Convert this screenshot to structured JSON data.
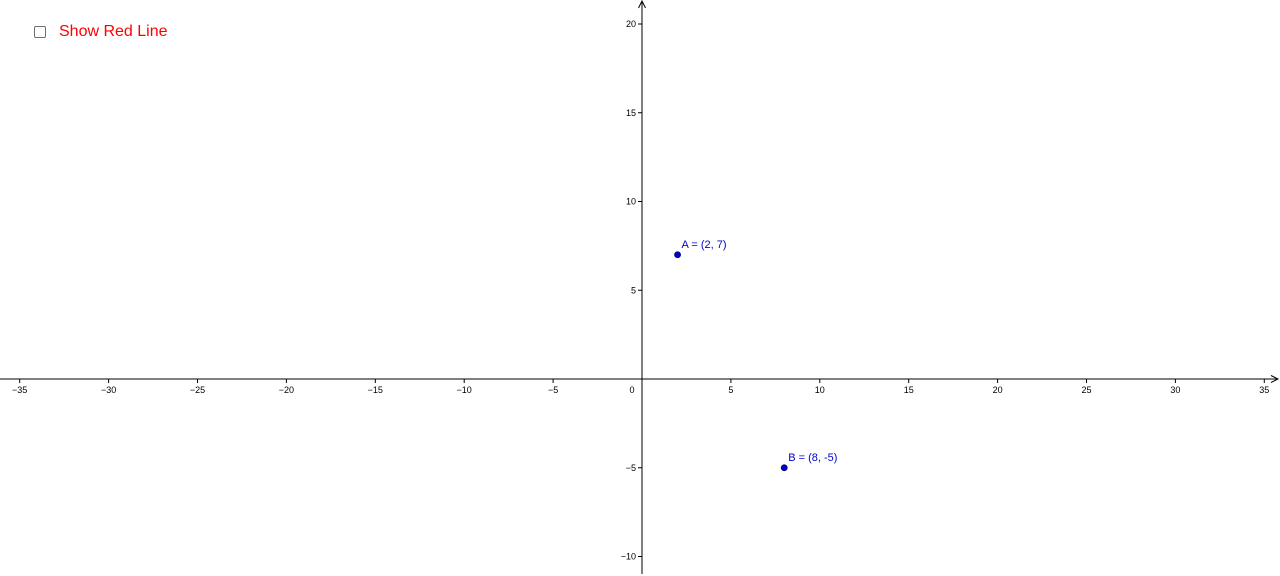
{
  "toolbar_checkbox": {
    "label": "Show Red Line",
    "checked": false,
    "label_color": "#ff0000"
  },
  "graph": {
    "x_range": [
      -35,
      35
    ],
    "y_range": [
      -10,
      20
    ],
    "x_tick_labels": [
      "−35",
      "−30",
      "−25",
      "−20",
      "−15",
      "−10",
      "−5",
      "0",
      "5",
      "10",
      "15",
      "20",
      "25",
      "30",
      "35"
    ],
    "y_tick_labels": [
      "−10",
      "−5",
      "5",
      "10",
      "15",
      "20"
    ],
    "point_color": "#0000cc",
    "points": [
      {
        "name": "A",
        "x": 2,
        "y": 7,
        "label": "A = (2, 7)"
      },
      {
        "name": "B",
        "x": 8,
        "y": -5,
        "label": "B = (8, -5)"
      }
    ]
  }
}
